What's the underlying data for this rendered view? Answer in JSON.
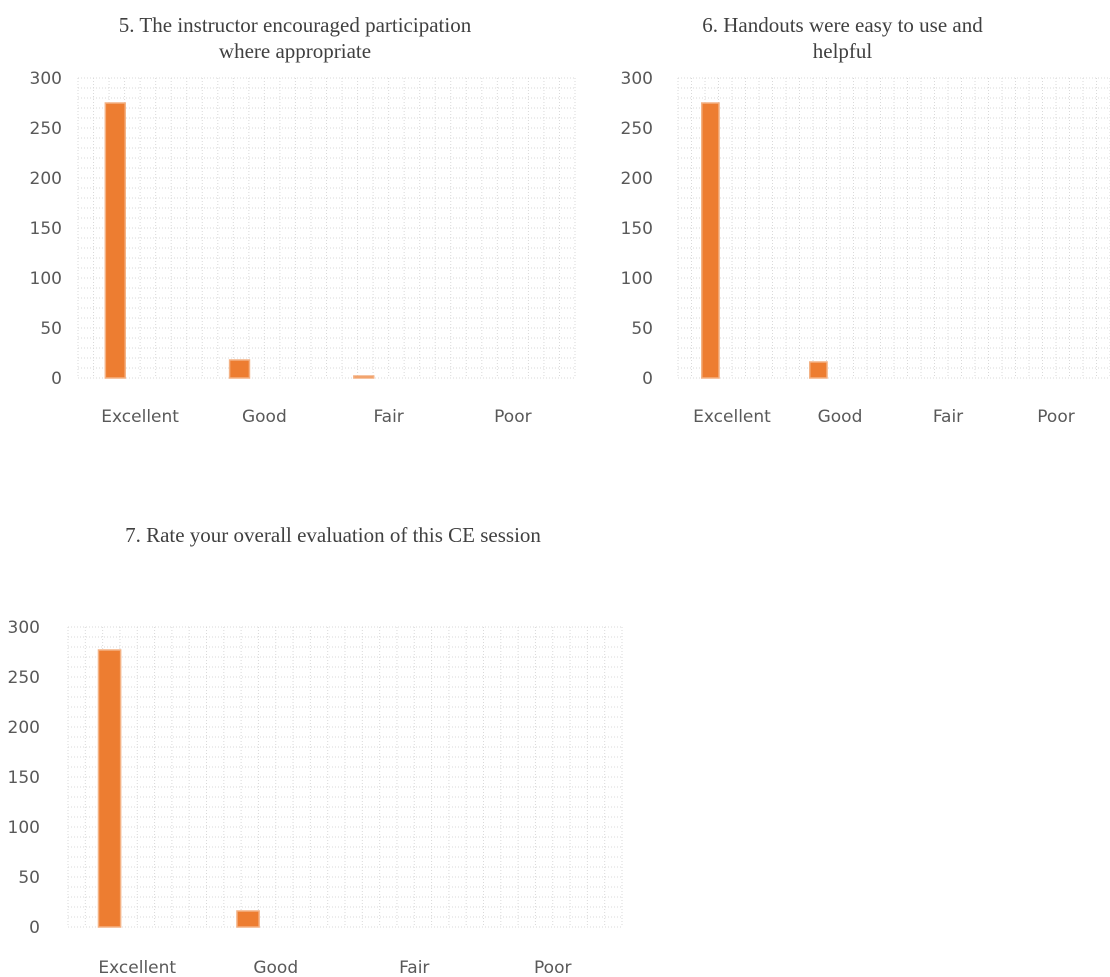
{
  "colors": {
    "bar": "#ED7D31",
    "bar_edge": "#F4B183",
    "grid": "#D9D9D9",
    "text": "#595959",
    "title": "#404040"
  },
  "chart_data": [
    {
      "type": "bar",
      "title": "5. The instructor  encouraged participation  where appropriate",
      "categories": [
        "Excellent",
        "Good",
        "Fair",
        "Poor"
      ],
      "values": [
        275,
        18,
        2,
        0
      ],
      "yticks": [
        0,
        50,
        100,
        150,
        200,
        250,
        300
      ],
      "ylim": [
        0,
        300
      ],
      "grid": true,
      "legend": "none"
    },
    {
      "type": "bar",
      "title": "6. Handouts  were easy to use and helpful",
      "categories": [
        "Excellent",
        "Good",
        "Fair",
        "Poor"
      ],
      "values": [
        275,
        16,
        0,
        0
      ],
      "yticks": [
        0,
        50,
        100,
        150,
        200,
        250,
        300
      ],
      "ylim": [
        0,
        300
      ],
      "grid": true,
      "legend": "none"
    },
    {
      "type": "bar",
      "title": "7. Rate your  overall  evaluation  of this CE session",
      "categories": [
        "Excellent",
        "Good",
        "Fair",
        "Poor"
      ],
      "values": [
        277,
        16,
        0,
        0
      ],
      "yticks": [
        0,
        50,
        100,
        150,
        200,
        250,
        300
      ],
      "ylim": [
        0,
        300
      ],
      "grid": true,
      "legend": "none"
    }
  ]
}
